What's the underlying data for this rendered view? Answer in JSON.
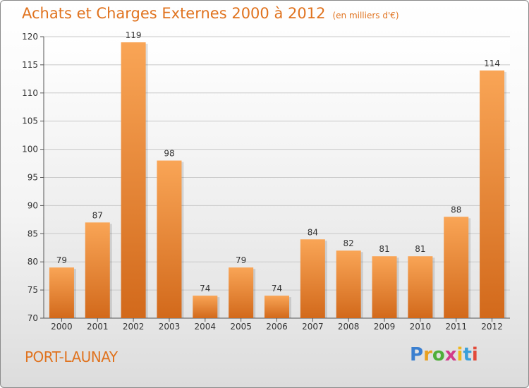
{
  "title": "Achats et Charges Externes 2000 à 2012",
  "subtitle": "(en milliers d'€)",
  "place": "PORT-LAUNAY",
  "logo": {
    "letters": [
      "P",
      "r",
      "o",
      "x",
      "i",
      "t",
      "i"
    ],
    "colors": [
      "#3a7fd0",
      "#e8a020",
      "#4fae3a",
      "#d23c8a",
      "#f0b81c",
      "#3a9fd8",
      "#e24a3a"
    ]
  },
  "colors": {
    "bar": "#f28a2a",
    "text": "#e0731f"
  },
  "chart_data": {
    "type": "bar",
    "categories": [
      "2000",
      "2001",
      "2002",
      "2003",
      "2004",
      "2005",
      "2006",
      "2007",
      "2008",
      "2009",
      "2010",
      "2011",
      "2012"
    ],
    "values": [
      79,
      87,
      119,
      98,
      74,
      79,
      74,
      84,
      82,
      81,
      81,
      88,
      114
    ],
    "ylim": [
      70,
      120
    ],
    "yticks": [
      70,
      75,
      80,
      85,
      90,
      95,
      100,
      105,
      110,
      115,
      120
    ],
    "grid": true
  }
}
